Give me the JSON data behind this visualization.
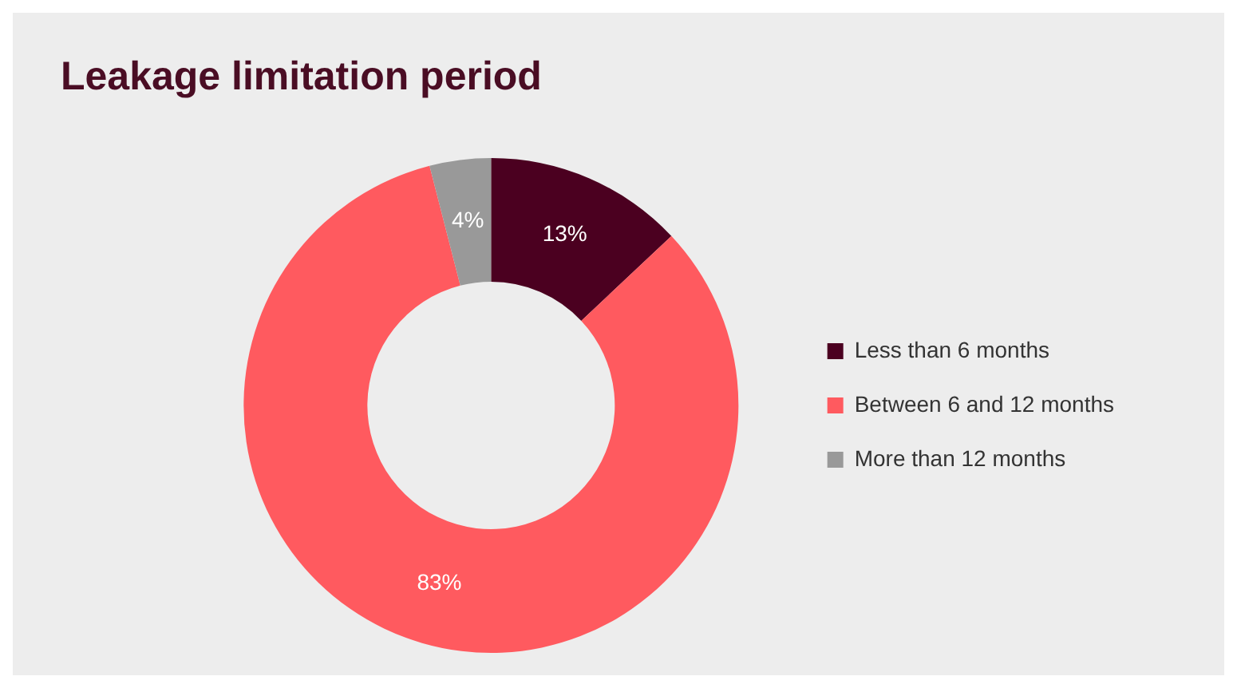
{
  "chart_data": {
    "type": "donut",
    "title": "Leakage limitation period",
    "categories": [
      "Less than 6 months",
      "Between 6 and 12 months",
      "More than 12 months"
    ],
    "values": [
      13,
      83,
      4
    ],
    "value_labels": [
      "13%",
      "83%",
      "4%"
    ],
    "colors": [
      "#4b0020",
      "#ff5a5f",
      "#999999"
    ],
    "legend": "right"
  }
}
